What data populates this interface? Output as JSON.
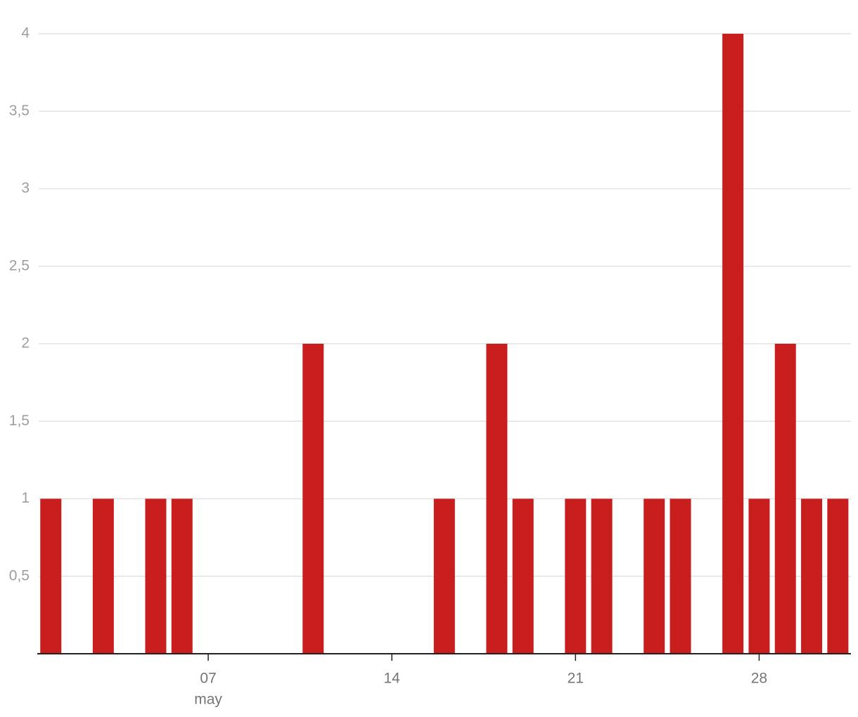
{
  "chart_data": {
    "type": "bar",
    "categories": [
      null,
      null,
      null,
      null,
      null,
      null,
      "07",
      null,
      null,
      null,
      null,
      null,
      null,
      "14",
      null,
      null,
      null,
      null,
      null,
      null,
      "21",
      null,
      null,
      null,
      null,
      null,
      null,
      "28",
      null,
      null,
      null
    ],
    "x_period_label": "may",
    "values": [
      1,
      0,
      1,
      0,
      1,
      1,
      0,
      0,
      0,
      0,
      2,
      0,
      0,
      0,
      0,
      1,
      0,
      2,
      1,
      0,
      1,
      1,
      0,
      1,
      1,
      0,
      4,
      1,
      2,
      1,
      1
    ],
    "color": "#c91e1e",
    "ylim": [
      0,
      4
    ],
    "yticks": [
      {
        "value": 0.5,
        "label": "0,5"
      },
      1,
      {
        "value": 1.5,
        "label": "1,5"
      },
      2,
      {
        "value": 2.5,
        "label": "2,5"
      },
      3,
      {
        "value": 3.5,
        "label": "3,5"
      },
      4
    ],
    "grid": true
  }
}
